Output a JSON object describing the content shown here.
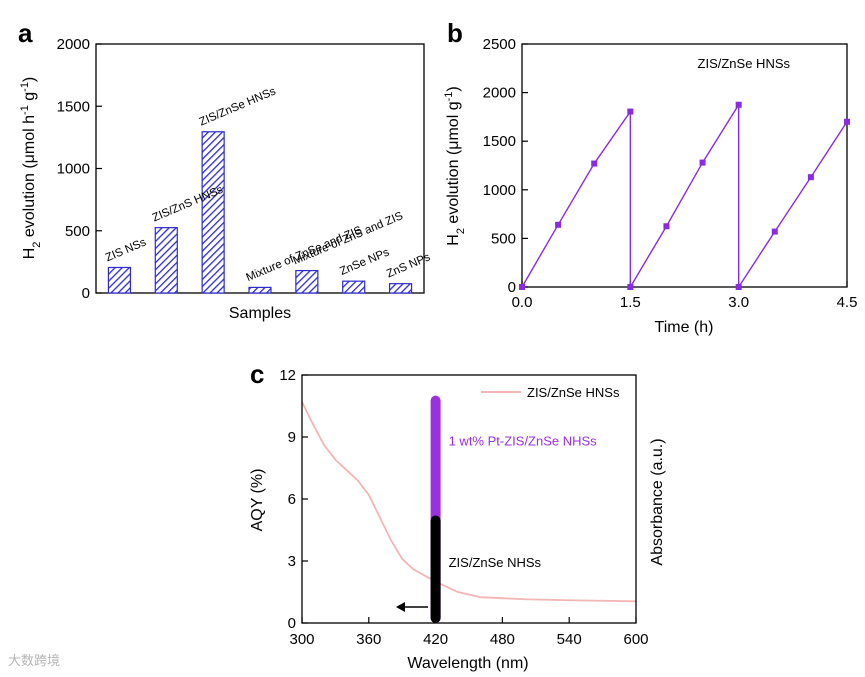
{
  "chart_data": [
    {
      "panel": "a",
      "type": "bar",
      "xlabel": "Samples",
      "ylabel": "H2 evolution (μmol h-1 g-1)",
      "ylim": [
        0,
        2000
      ],
      "yticks": [
        0,
        500,
        1000,
        1500,
        2000
      ],
      "categories": [
        "ZIS NSs",
        "ZIS/ZnS HNSs",
        "ZIS/ZnSe HNSs",
        "Mixture of ZnSe and ZIS",
        "Mixture of ZnS and ZIS",
        "ZnSe NPs",
        "ZnS NPs"
      ],
      "values": [
        205,
        525,
        1295,
        45,
        180,
        95,
        75
      ],
      "bar_color": "#2b2bd0"
    },
    {
      "panel": "b",
      "type": "line",
      "xlabel": "Time (h)",
      "ylabel": "H2 evolution (μmol g-1)",
      "xlim": [
        0,
        4.5
      ],
      "ylim": [
        0,
        2500
      ],
      "xticks": [
        "0.0",
        "1.5",
        "3.0",
        "4.5"
      ],
      "yticks": [
        0,
        500,
        1000,
        1500,
        2000,
        2500
      ],
      "legend": "ZIS/ZnSe HNSs",
      "series_color": "#8a2be2",
      "cycles": [
        {
          "x": [
            0,
            0.5,
            1.0,
            1.5
          ],
          "y": [
            0,
            640,
            1270,
            1805
          ]
        },
        {
          "x": [
            1.5,
            2.0,
            2.5,
            3.0
          ],
          "y": [
            0,
            625,
            1280,
            1875
          ]
        },
        {
          "x": [
            3.0,
            3.5,
            4.0,
            4.5
          ],
          "y": [
            0,
            570,
            1130,
            1700
          ]
        }
      ]
    },
    {
      "panel": "c",
      "type": "line",
      "xlabel": "Wavelength (nm)",
      "ylabel": "AQY (%)",
      "y2label": "Absorbance (a.u.)",
      "xlim": [
        300,
        600
      ],
      "ylim": [
        0,
        12
      ],
      "xticks": [
        300,
        360,
        420,
        480,
        540,
        600
      ],
      "yticks": [
        0,
        3,
        6,
        9,
        12
      ],
      "legend": "ZIS/ZnSe HNSs",
      "absorbance_color": "#f4b5b5",
      "absorbance": {
        "x": [
          300,
          310,
          320,
          330,
          340,
          350,
          360,
          370,
          380,
          390,
          400,
          410,
          420,
          430,
          440,
          460,
          480,
          500,
          540,
          600
        ],
        "y": [
          10.7,
          9.6,
          8.6,
          7.9,
          7.4,
          6.9,
          6.2,
          5.1,
          4.0,
          3.1,
          2.6,
          2.3,
          2.0,
          1.75,
          1.5,
          1.25,
          1.2,
          1.15,
          1.1,
          1.05
        ]
      },
      "aqy_bars": [
        {
          "label": "1 wt% Pt-ZIS/ZnSe NHSs",
          "wavelength": 420,
          "value": 11.0,
          "color": "#9b30e0"
        },
        {
          "label": "ZIS/ZnSe NHSs",
          "wavelength": 420,
          "value": 5.2,
          "color": "#000000"
        }
      ]
    }
  ],
  "panel_letters": {
    "a": "a",
    "b": "b",
    "c": "c"
  },
  "watermark": "大数跨境"
}
